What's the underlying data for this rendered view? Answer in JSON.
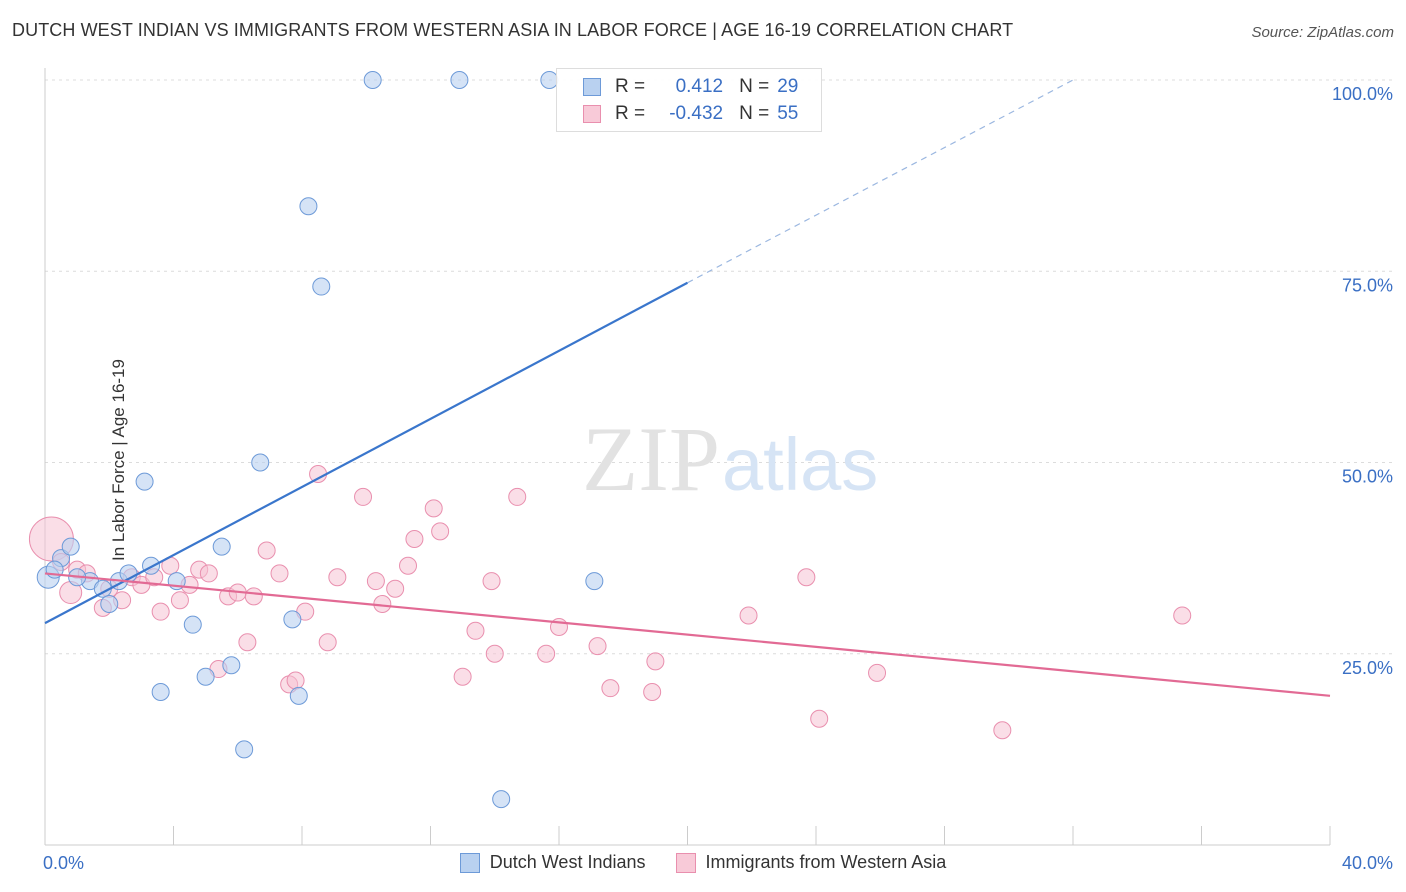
{
  "header": {
    "title": "DUTCH WEST INDIAN VS IMMIGRANTS FROM WESTERN ASIA IN LABOR FORCE | AGE 16-19 CORRELATION CHART",
    "source": "Source: ZipAtlas.com"
  },
  "legend": {
    "r_label": "R =",
    "n_label": "N =",
    "rows": [
      {
        "r": "0.412",
        "n": "29"
      },
      {
        "r": "-0.432",
        "n": "55"
      }
    ]
  },
  "watermark": {
    "zip": "ZIP",
    "atlas": "atlas"
  },
  "colors": {
    "blue": "#3a76cc",
    "blue_fill": "#b9d1f0",
    "pink": "#e26a94",
    "pink_fill": "#f6c3d3",
    "tick_text": "#3a6fc4"
  },
  "chart_data": {
    "type": "scatter",
    "ylabel": "In Labor Force | Age 16-19",
    "xlim": [
      0,
      40
    ],
    "ylim": [
      0,
      100
    ],
    "x_tick_labels": [
      "0.0%",
      "40.0%"
    ],
    "y_ticks": [
      25,
      50,
      75,
      100
    ],
    "y_tick_labels": [
      "25.0%",
      "50.0%",
      "75.0%",
      "100.0%"
    ],
    "series": [
      {
        "name": "Dutch West Indians",
        "points": [
          [
            0.1,
            35.0
          ],
          [
            0.5,
            37.5
          ],
          [
            0.8,
            39.0
          ],
          [
            1.4,
            34.5
          ],
          [
            1.8,
            33.5
          ],
          [
            2.3,
            34.5
          ],
          [
            2.6,
            35.5
          ],
          [
            3.1,
            47.5
          ],
          [
            3.3,
            36.5
          ],
          [
            3.6,
            20.0
          ],
          [
            4.1,
            34.5
          ],
          [
            4.6,
            28.8
          ],
          [
            5.0,
            22.0
          ],
          [
            5.5,
            39.0
          ],
          [
            5.8,
            23.5
          ],
          [
            6.2,
            12.5
          ],
          [
            6.7,
            50.0
          ],
          [
            7.7,
            29.5
          ],
          [
            7.9,
            19.5
          ],
          [
            8.2,
            83.5
          ],
          [
            8.6,
            73.0
          ],
          [
            10.2,
            100
          ],
          [
            12.9,
            100
          ],
          [
            15.7,
            100
          ],
          [
            14.2,
            6.0
          ],
          [
            17.1,
            34.5
          ],
          [
            0.3,
            36.0
          ],
          [
            2.0,
            31.5
          ],
          [
            1.0,
            35.0
          ]
        ],
        "trend": {
          "x0": 0,
          "y0": 29.0,
          "x1": 20.0,
          "y1": 73.5,
          "dash_to_x": 32.0,
          "dash_to_y": 100.0
        }
      },
      {
        "name": "Immigrants from Western Asia",
        "points": [
          [
            0.2,
            40.0
          ],
          [
            0.5,
            37.0
          ],
          [
            0.8,
            33.0
          ],
          [
            1.0,
            36.0
          ],
          [
            1.3,
            35.5
          ],
          [
            1.8,
            31.0
          ],
          [
            2.0,
            33.5
          ],
          [
            2.4,
            32.0
          ],
          [
            2.7,
            35.0
          ],
          [
            3.0,
            34.0
          ],
          [
            3.4,
            35.0
          ],
          [
            3.6,
            30.5
          ],
          [
            3.9,
            36.5
          ],
          [
            4.2,
            32.0
          ],
          [
            4.5,
            34.0
          ],
          [
            4.8,
            36.0
          ],
          [
            5.1,
            35.5
          ],
          [
            5.4,
            23.0
          ],
          [
            5.7,
            32.5
          ],
          [
            6.0,
            33.0
          ],
          [
            6.3,
            26.5
          ],
          [
            6.5,
            32.5
          ],
          [
            6.9,
            38.5
          ],
          [
            7.3,
            35.5
          ],
          [
            7.6,
            21.0
          ],
          [
            7.8,
            21.5
          ],
          [
            8.1,
            30.5
          ],
          [
            8.5,
            48.5
          ],
          [
            8.8,
            26.5
          ],
          [
            9.1,
            35.0
          ],
          [
            9.9,
            45.5
          ],
          [
            10.3,
            34.5
          ],
          [
            10.5,
            31.5
          ],
          [
            10.9,
            33.5
          ],
          [
            11.3,
            36.5
          ],
          [
            11.5,
            40.0
          ],
          [
            12.1,
            44.0
          ],
          [
            12.3,
            41.0
          ],
          [
            13.0,
            22.0
          ],
          [
            13.4,
            28.0
          ],
          [
            13.9,
            34.5
          ],
          [
            14.0,
            25.0
          ],
          [
            14.7,
            45.5
          ],
          [
            15.6,
            25.0
          ],
          [
            16.0,
            28.5
          ],
          [
            17.2,
            26.0
          ],
          [
            17.6,
            20.5
          ],
          [
            18.9,
            20.0
          ],
          [
            19.0,
            24.0
          ],
          [
            21.9,
            30.0
          ],
          [
            23.7,
            35.0
          ],
          [
            24.1,
            16.5
          ],
          [
            25.9,
            22.5
          ],
          [
            29.8,
            15.0
          ],
          [
            35.4,
            30.0
          ]
        ],
        "trend": {
          "x0": 0,
          "y0": 35.5,
          "x1": 40.0,
          "y1": 19.5
        }
      }
    ]
  }
}
